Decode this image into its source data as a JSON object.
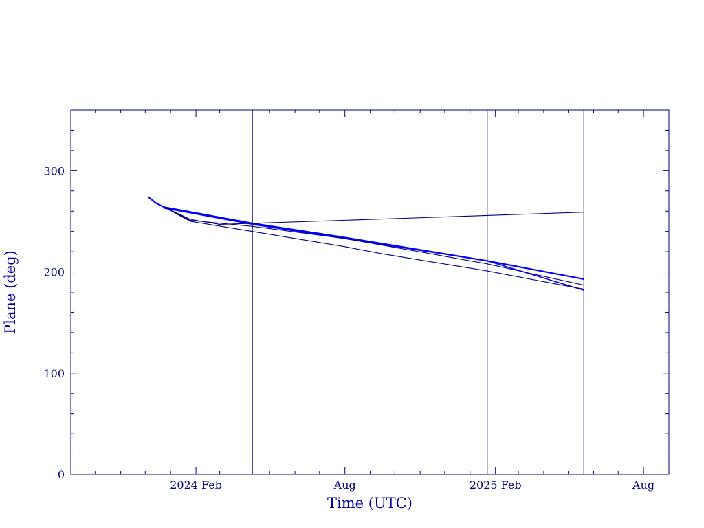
{
  "chart_data": {
    "type": "line",
    "title": "",
    "xlabel": "Time (UTC)",
    "ylabel": "Plane (deg)",
    "ylim": [
      0,
      360
    ],
    "xlim": [
      "2023-09-01",
      "2025-09-01"
    ],
    "grid": false,
    "legend": "none",
    "colors": {
      "axis": "#000080",
      "line_dark": "#000080",
      "line_bright": "#0000ff"
    },
    "x_ticks": [
      {
        "date": "2024-02-01",
        "label": "2024 Feb"
      },
      {
        "date": "2024-08-01",
        "label": "Aug"
      },
      {
        "date": "2025-02-01",
        "label": "2025 Feb"
      },
      {
        "date": "2025-08-01",
        "label": "Aug"
      }
    ],
    "y_ticks": [
      {
        "value": 0,
        "label": "0"
      },
      {
        "value": 100,
        "label": "100"
      },
      {
        "value": 200,
        "label": "200"
      },
      {
        "value": 300,
        "label": "300"
      }
    ],
    "vertical_lines": [
      "2024-04-10",
      "2025-01-22",
      "2025-05-20"
    ],
    "series": [
      {
        "color": "#0000ff",
        "width": 2.2,
        "points": [
          [
            "2023-12-05",
            274
          ],
          [
            "2023-12-14",
            268
          ],
          [
            "2023-12-24",
            264
          ],
          [
            "2024-04-10",
            248
          ],
          [
            "2024-08-01",
            234
          ],
          [
            "2025-01-22",
            211
          ],
          [
            "2025-05-20",
            193
          ]
        ]
      },
      {
        "color": "#0000ff",
        "width": 1.6,
        "points": [
          [
            "2023-12-24",
            263
          ],
          [
            "2024-04-10",
            247
          ],
          [
            "2024-08-01",
            233
          ],
          [
            "2025-01-22",
            211
          ],
          [
            "2025-05-20",
            182
          ]
        ]
      },
      {
        "color": "#000080",
        "width": 1.1,
        "points": [
          [
            "2023-12-24",
            264
          ],
          [
            "2024-01-25",
            252
          ],
          [
            "2024-03-01",
            247
          ],
          [
            "2024-04-10",
            248
          ],
          [
            "2025-05-20",
            259
          ]
        ]
      },
      {
        "color": "#000080",
        "width": 1.1,
        "points": [
          [
            "2023-12-24",
            264
          ],
          [
            "2024-01-25",
            250
          ],
          [
            "2024-04-10",
            240
          ],
          [
            "2024-08-01",
            225
          ],
          [
            "2024-09-15",
            218
          ],
          [
            "2025-01-22",
            201
          ],
          [
            "2025-05-20",
            183
          ]
        ]
      },
      {
        "color": "#000080",
        "width": 1.1,
        "points": [
          [
            "2023-12-24",
            264
          ],
          [
            "2024-01-25",
            251
          ],
          [
            "2024-04-10",
            245
          ],
          [
            "2024-08-01",
            233
          ],
          [
            "2025-01-22",
            208
          ],
          [
            "2025-05-20",
            187
          ]
        ]
      }
    ]
  }
}
